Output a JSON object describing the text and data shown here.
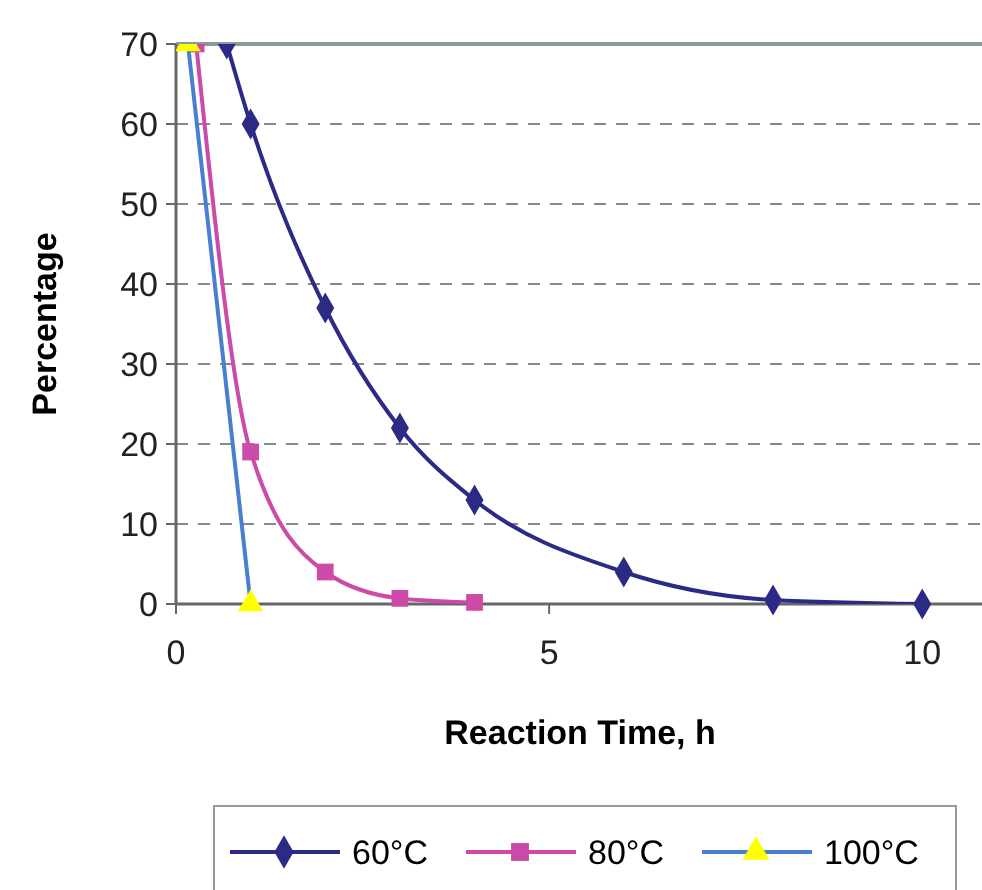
{
  "chart_data": {
    "type": "line",
    "xlabel": "Reaction Time, h",
    "ylabel": "Percentage",
    "xlim": [
      0,
      10.8
    ],
    "xticks": [
      0,
      5,
      10
    ],
    "ylim": [
      0,
      70
    ],
    "yticks": [
      0,
      10,
      20,
      30,
      40,
      50,
      60,
      70
    ],
    "grid": "y",
    "legend": "bottom",
    "series": [
      {
        "name": "60°C",
        "color": "#2b2a85",
        "marker": "diamond",
        "x": [
          0.68,
          1,
          2,
          3,
          4,
          6,
          8,
          10
        ],
        "values": [
          70,
          60,
          37,
          22,
          13,
          4,
          0.5,
          0
        ]
      },
      {
        "name": "80°C",
        "color": "#cc4aa8",
        "marker": "square",
        "x": [
          0.27,
          1,
          2,
          3,
          4
        ],
        "values": [
          70,
          19,
          4,
          0.7,
          0.2
        ]
      },
      {
        "name": "100°C",
        "color": "#4a7fd0",
        "marker": "triangle",
        "colors": [
          "#ffff00",
          "#ffff00"
        ],
        "x": [
          0.16,
          1
        ],
        "values": [
          70,
          0
        ]
      }
    ]
  }
}
